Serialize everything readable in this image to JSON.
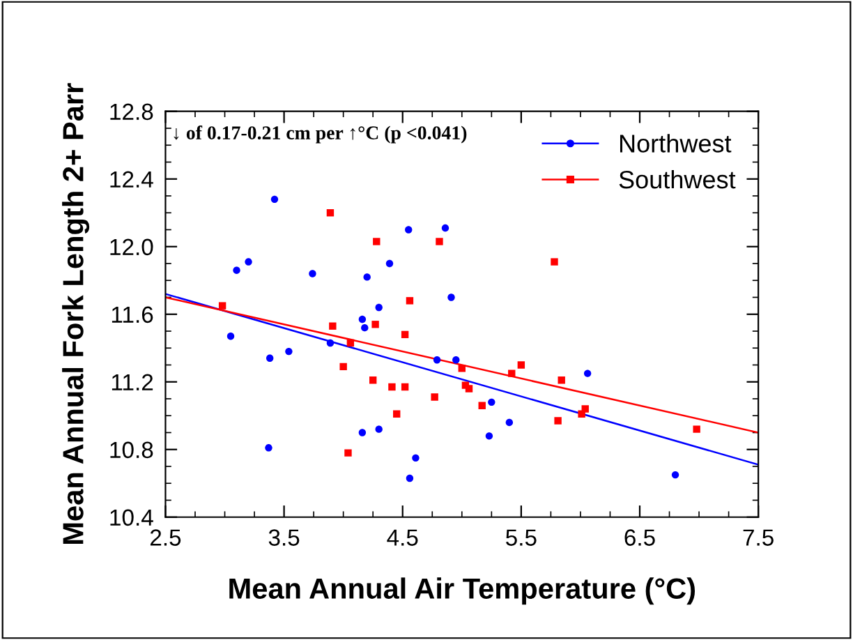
{
  "chart_data": {
    "type": "scatter",
    "xlabel": "Mean Annual Air Temperature (°C)",
    "ylabel": "Mean Annual Fork Length 2+ Parr",
    "annotations": [
      "↓ of 0.17-0.21 cm per ↑°C (p <0.041)"
    ],
    "xlim": [
      2.5,
      7.5
    ],
    "xticks": [
      2.5,
      3.5,
      4.5,
      5.5,
      6.5,
      7.5
    ],
    "ylim": [
      10.4,
      12.8
    ],
    "yticks": [
      10.4,
      10.8,
      11.2,
      11.6,
      {
        "value": 12.0,
        "label": "12.0"
      },
      12.4,
      12.8
    ],
    "grid": false,
    "legend": "top right",
    "series": [
      {
        "name": "Northwest",
        "color": "#0000ff",
        "marker": "circle",
        "x": [
          3.42,
          3.1,
          3.2,
          3.74,
          4.2,
          4.39,
          4.55,
          4.86,
          4.91,
          4.3,
          4.16,
          4.18,
          3.05,
          3.54,
          3.38,
          3.89,
          4.79,
          4.95,
          3.37,
          4.16,
          4.3,
          4.61,
          4.56,
          6.06,
          5.25,
          5.23,
          5.4,
          6.8
        ],
        "values": [
          12.28,
          11.86,
          11.91,
          11.84,
          11.82,
          11.9,
          12.1,
          12.11,
          11.7,
          11.64,
          11.57,
          11.52,
          11.47,
          11.38,
          11.34,
          11.43,
          11.33,
          11.33,
          10.81,
          10.9,
          10.92,
          10.75,
          10.63,
          11.25,
          11.08,
          10.88,
          10.96,
          10.65
        ]
      },
      {
        "name": "Southwest",
        "color": "#ff0000",
        "marker": "square",
        "x": [
          3.89,
          4.28,
          4.81,
          4.56,
          2.98,
          3.91,
          4.27,
          4.52,
          4.06,
          4.0,
          5.0,
          4.25,
          4.41,
          4.52,
          5.03,
          5.06,
          4.77,
          4.45,
          4.04,
          5.17,
          5.42,
          5.5,
          5.78,
          5.84,
          5.81,
          6.01,
          6.04,
          6.98
        ],
        "values": [
          12.2,
          12.03,
          12.03,
          11.68,
          11.65,
          11.53,
          11.54,
          11.48,
          11.43,
          11.29,
          11.28,
          11.21,
          11.17,
          11.17,
          11.18,
          11.16,
          11.11,
          11.01,
          10.78,
          11.06,
          11.25,
          11.3,
          11.91,
          11.21,
          10.97,
          11.01,
          11.04,
          10.92
        ]
      },
      {
        "type": "line",
        "color": "#0000ff",
        "x": [
          2.5,
          7.5
        ],
        "values": [
          11.72,
          10.71
        ]
      },
      {
        "type": "line",
        "color": "#ff0000",
        "x": [
          2.5,
          7.5
        ],
        "values": [
          11.7,
          10.9
        ]
      }
    ]
  }
}
